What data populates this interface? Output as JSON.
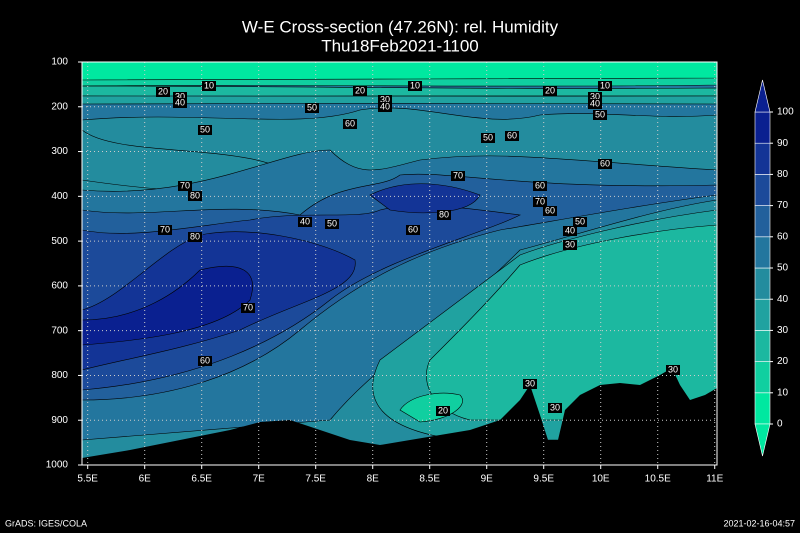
{
  "chart_data": {
    "type": "contour",
    "title": "W-E Cross-section (47.26N): rel. Humidity",
    "subtitle": "Thu18Feb2021-1100",
    "xlim": [
      5.45,
      11.02
    ],
    "xticks": [
      {
        "value": 5.5,
        "label": "5.5E"
      },
      {
        "value": 6,
        "label": "6E"
      },
      {
        "value": 6.5,
        "label": "6.5E"
      },
      {
        "value": 7,
        "label": "7E"
      },
      {
        "value": 7.5,
        "label": "7.5E"
      },
      {
        "value": 8,
        "label": "8E"
      },
      {
        "value": 8.5,
        "label": "8.5E"
      },
      {
        "value": 9,
        "label": "9E"
      },
      {
        "value": 9.5,
        "label": "9.5E"
      },
      {
        "value": 10,
        "label": "10E"
      },
      {
        "value": 10.5,
        "label": "10.5E"
      },
      {
        "value": 11,
        "label": "11E"
      }
    ],
    "ylim": [
      100,
      1000
    ],
    "yticks": [
      100,
      200,
      300,
      400,
      500,
      600,
      700,
      800,
      900,
      1000
    ],
    "grid": true,
    "levels": [
      0,
      10,
      20,
      30,
      40,
      50,
      60,
      70,
      80,
      90,
      100
    ],
    "colors": [
      "#00e8a0",
      "#10cfa0",
      "#1cb8a0",
      "#20a2a0",
      "#238c9e",
      "#23769e",
      "#22609c",
      "#1c4a9a",
      "#133496",
      "#0a2090"
    ],
    "contour_labels": [
      10,
      20,
      30,
      40,
      10,
      20,
      30,
      40,
      50,
      10,
      20,
      30,
      40,
      50,
      50,
      60,
      50,
      60,
      70,
      80,
      70,
      60,
      70,
      40,
      30,
      50,
      60,
      60,
      80,
      80,
      70,
      40,
      50,
      60,
      70,
      60,
      20,
      30,
      30,
      30
    ],
    "footer_left": "GrADS: IGES/COLA",
    "footer_right": "2021-02-16-04:57"
  }
}
